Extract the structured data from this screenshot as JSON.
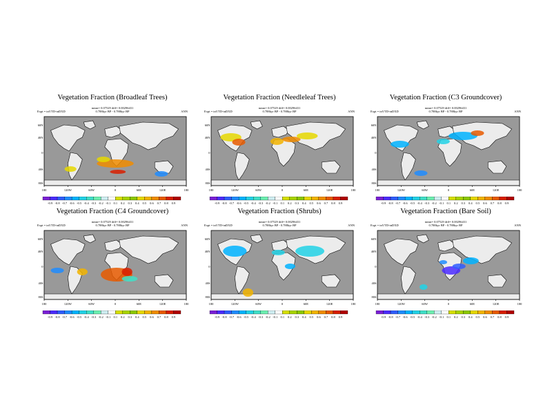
{
  "common": {
    "stats": "mean= 0.07529 diff= 0.00296431",
    "expt": "Expt = tnVTD-tnDXD",
    "range": "0.788kyr BP - 0.788kyr BP",
    "season": "ANN",
    "lat_labels": [
      "60N",
      "40N",
      "0",
      "40S",
      "80S"
    ],
    "lon_labels": [
      "180",
      "120W",
      "60W",
      "0",
      "60E",
      "120E",
      "180"
    ],
    "colorbar_labels": [
      "-0.9",
      "-0.8",
      "-0.7",
      "-0.6",
      "-0.5",
      "-0.4",
      "-0.3",
      "-0.2",
      "-0.1",
      "0.1",
      "0.2",
      "0.3",
      "0.4",
      "0.5",
      "0.6",
      "0.7",
      "0.8",
      "0.9"
    ],
    "colorbar_colors": [
      "#7a1fd6",
      "#4b2bff",
      "#2f5dff",
      "#1f8cff",
      "#00b3ff",
      "#22d2e6",
      "#40e0c8",
      "#6cefb0",
      "#cfeef2",
      "#ffffff",
      "#d6e000",
      "#a8d400",
      "#8cc800",
      "#e6d800",
      "#f2b400",
      "#f08c00",
      "#e85a00",
      "#d81e00",
      "#b00000"
    ],
    "colors": {
      "ocean": "#999999",
      "land": "#ececec"
    }
  },
  "panels": [
    {
      "title": "Vegetation Fraction (Broadleaf Trees)"
    },
    {
      "title": "Vegetation Fraction (Needleleaf Trees)"
    },
    {
      "title": "Vegetation Fraction (C3 Groundcover)"
    },
    {
      "title": "Vegetation Fraction (C4 Groundcover)"
    },
    {
      "title": "Vegetation Fraction (Shrubs)"
    },
    {
      "title": "Vegetation Fraction (Bare Soil)"
    }
  ]
}
